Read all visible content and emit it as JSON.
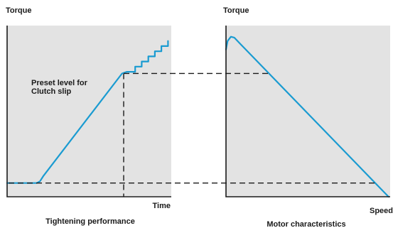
{
  "colors": {
    "curve": "#1a9bd1",
    "panel_background": "#e3e3e3",
    "axis": "#1a1a1a",
    "guide_lines": "#1a1a1a"
  },
  "chart_data": [
    {
      "type": "line",
      "ylabel": "Torque",
      "xlabel": "Time",
      "caption": "Tightening performance",
      "annotation": "Preset level for\nClutch slip",
      "series": [
        {
          "points": [
            [
              0.0,
              0.08
            ],
            [
              0.18,
              0.08
            ],
            [
              0.2,
              0.09
            ],
            [
              0.22,
              0.12
            ],
            [
              0.7,
              0.72
            ],
            [
              0.73,
              0.73
            ],
            [
              0.78,
              0.73
            ],
            [
              0.78,
              0.76
            ],
            [
              0.82,
              0.76
            ],
            [
              0.82,
              0.79
            ],
            [
              0.86,
              0.79
            ],
            [
              0.86,
              0.82
            ],
            [
              0.9,
              0.82
            ],
            [
              0.9,
              0.85
            ],
            [
              0.94,
              0.85
            ],
            [
              0.94,
              0.88
            ],
            [
              0.98,
              0.88
            ],
            [
              0.98,
              0.91
            ]
          ]
        }
      ],
      "guides": {
        "preset_torque": 0.72,
        "start_torque": 0.08,
        "clutch_slip_time": 0.71
      },
      "xlim": [
        0,
        1
      ],
      "ylim": [
        0,
        1
      ],
      "grid": false
    },
    {
      "type": "line",
      "ylabel": "Torque",
      "xlabel": "Speed",
      "caption": "Motor characteristics",
      "series": [
        {
          "points": [
            [
              0.0,
              0.86
            ],
            [
              0.01,
              0.91
            ],
            [
              0.03,
              0.935
            ],
            [
              0.05,
              0.93
            ],
            [
              0.09,
              0.89
            ],
            [
              0.99,
              0.0
            ]
          ]
        }
      ],
      "xlim": [
        0,
        1
      ],
      "ylim": [
        0,
        1
      ],
      "grid": false
    }
  ]
}
